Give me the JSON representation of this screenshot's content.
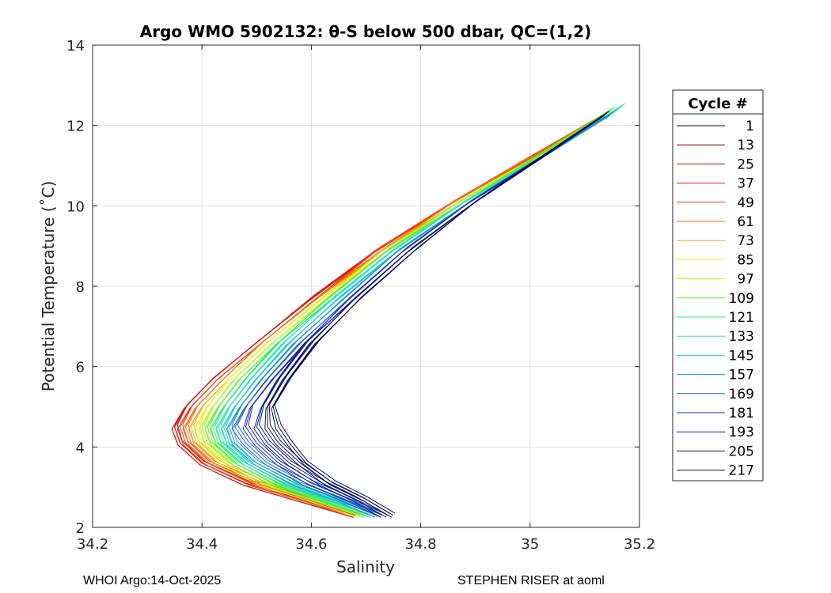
{
  "chart_data": {
    "type": "line",
    "title": "Argo WMO 5902132: θ-S below 500 dbar,  QC=(1,2)",
    "xlabel": "Salinity",
    "ylabel": "Potential Temperature (˚C)",
    "xlim": [
      34.2,
      35.2
    ],
    "ylim": [
      2,
      14
    ],
    "xticks": [
      34.2,
      34.4,
      34.6,
      34.8,
      35,
      35.2
    ],
    "xtick_labels": [
      "34.2",
      "34.4",
      "34.6",
      "34.8",
      "35",
      "35.2"
    ],
    "yticks": [
      2,
      4,
      6,
      8,
      10,
      12,
      14
    ],
    "ytick_labels": [
      "2",
      "4",
      "6",
      "8",
      "10",
      "12",
      "14"
    ],
    "grid": true,
    "legend": {
      "title": "Cycle #",
      "placement": "outside-right",
      "entries": [
        {
          "label": "1",
          "color": "#3a0000"
        },
        {
          "label": "13",
          "color": "#6e0000"
        },
        {
          "label": "25",
          "color": "#a81010"
        },
        {
          "label": "37",
          "color": "#d42020"
        },
        {
          "label": "49",
          "color": "#ee3a10"
        },
        {
          "label": "61",
          "color": "#f46a10"
        },
        {
          "label": "73",
          "color": "#f4a81a"
        },
        {
          "label": "85",
          "color": "#f2f21c"
        },
        {
          "label": "97",
          "color": "#b2f41e"
        },
        {
          "label": "109",
          "color": "#64f02a"
        },
        {
          "label": "121",
          "color": "#2aee66"
        },
        {
          "label": "133",
          "color": "#22e8ac"
        },
        {
          "label": "145",
          "color": "#1ec8d8"
        },
        {
          "label": "157",
          "color": "#1a98c8"
        },
        {
          "label": "169",
          "color": "#1a64c8"
        },
        {
          "label": "181",
          "color": "#1a30b4"
        },
        {
          "label": "193",
          "color": "#101c8c"
        },
        {
          "label": "205",
          "color": "#0c126a"
        },
        {
          "label": "217",
          "color": "#080c50"
        }
      ]
    },
    "series": [
      {
        "name": "1",
        "x": [
          34.68,
          34.58,
          34.48,
          34.4,
          34.36,
          34.35,
          34.37,
          34.42,
          34.5,
          34.6,
          34.72,
          34.86,
          35.0,
          35.14
        ],
        "y": [
          2.3,
          2.7,
          3.1,
          3.6,
          4.1,
          4.5,
          5.0,
          5.7,
          6.6,
          7.7,
          8.9,
          10.1,
          11.2,
          12.3
        ]
      },
      {
        "name": "13",
        "x": [
          34.68,
          34.58,
          34.48,
          34.4,
          34.36,
          34.35,
          34.37,
          34.42,
          34.5,
          34.6,
          34.72,
          34.86,
          35.0,
          35.14
        ],
        "y": [
          2.3,
          2.7,
          3.1,
          3.6,
          4.1,
          4.5,
          5.0,
          5.7,
          6.6,
          7.7,
          8.9,
          10.1,
          11.2,
          12.3
        ]
      },
      {
        "name": "25",
        "x": [
          34.68,
          34.58,
          34.48,
          34.4,
          34.36,
          34.35,
          34.37,
          34.42,
          34.5,
          34.6,
          34.72,
          34.86,
          35.0,
          35.14
        ],
        "y": [
          2.3,
          2.7,
          3.1,
          3.6,
          4.1,
          4.5,
          5.0,
          5.7,
          6.6,
          7.7,
          8.9,
          10.1,
          11.2,
          12.3
        ]
      },
      {
        "name": "37",
        "x": [
          34.68,
          34.58,
          34.48,
          34.4,
          34.36,
          34.35,
          34.37,
          34.42,
          34.5,
          34.6,
          34.72,
          34.86,
          35.0,
          35.14
        ],
        "y": [
          2.3,
          2.7,
          3.1,
          3.6,
          4.1,
          4.5,
          5.0,
          5.7,
          6.6,
          7.7,
          8.9,
          10.1,
          11.2,
          12.3
        ]
      },
      {
        "name": "49",
        "x": [
          34.68,
          34.59,
          34.49,
          34.41,
          34.37,
          34.36,
          34.38,
          34.43,
          34.51,
          34.61,
          34.72,
          34.86,
          35.0,
          35.14
        ],
        "y": [
          2.3,
          2.7,
          3.1,
          3.6,
          4.1,
          4.5,
          5.0,
          5.7,
          6.6,
          7.7,
          8.9,
          10.1,
          11.2,
          12.3
        ]
      },
      {
        "name": "61",
        "x": [
          34.69,
          34.59,
          34.5,
          34.42,
          34.38,
          34.37,
          34.39,
          34.44,
          34.51,
          34.61,
          34.73,
          34.86,
          35.0,
          35.14
        ],
        "y": [
          2.3,
          2.7,
          3.1,
          3.6,
          4.1,
          4.5,
          5.0,
          5.7,
          6.6,
          7.7,
          8.9,
          10.1,
          11.2,
          12.3
        ]
      },
      {
        "name": "73",
        "x": [
          34.69,
          34.6,
          34.51,
          34.43,
          34.39,
          34.38,
          34.4,
          34.45,
          34.52,
          34.62,
          34.73,
          34.87,
          35.01,
          35.14
        ],
        "y": [
          2.3,
          2.7,
          3.1,
          3.6,
          4.1,
          4.5,
          5.0,
          5.7,
          6.6,
          7.7,
          8.9,
          10.1,
          11.2,
          12.3
        ]
      },
      {
        "name": "85",
        "x": [
          34.69,
          34.6,
          34.51,
          34.44,
          34.4,
          34.39,
          34.41,
          34.45,
          34.52,
          34.62,
          34.74,
          34.87,
          35.01,
          35.14
        ],
        "y": [
          2.3,
          2.7,
          3.1,
          3.6,
          4.1,
          4.5,
          5.0,
          5.7,
          6.6,
          7.7,
          8.9,
          10.1,
          11.2,
          12.3
        ]
      },
      {
        "name": "97",
        "x": [
          34.7,
          34.61,
          34.52,
          34.45,
          34.41,
          34.4,
          34.42,
          34.46,
          34.53,
          34.63,
          34.74,
          34.87,
          35.01,
          35.15
        ],
        "y": [
          2.3,
          2.7,
          3.1,
          3.6,
          4.1,
          4.5,
          5.0,
          5.7,
          6.6,
          7.7,
          8.9,
          10.1,
          11.2,
          12.4
        ]
      },
      {
        "name": "109",
        "x": [
          34.7,
          34.61,
          34.53,
          34.46,
          34.42,
          34.41,
          34.43,
          34.47,
          34.54,
          34.63,
          34.74,
          34.88,
          35.01,
          35.15
        ],
        "y": [
          2.3,
          2.7,
          3.1,
          3.6,
          4.1,
          4.5,
          5.0,
          5.7,
          6.6,
          7.7,
          8.9,
          10.1,
          11.2,
          12.4
        ]
      },
      {
        "name": "121",
        "x": [
          34.71,
          34.62,
          34.54,
          34.47,
          34.43,
          34.42,
          34.44,
          34.48,
          34.54,
          34.64,
          34.75,
          34.88,
          35.02,
          35.16
        ],
        "y": [
          2.3,
          2.7,
          3.1,
          3.6,
          4.1,
          4.5,
          5.0,
          5.7,
          6.6,
          7.7,
          8.9,
          10.1,
          11.2,
          12.4
        ]
      },
      {
        "name": "133",
        "x": [
          34.71,
          34.63,
          34.55,
          34.48,
          34.44,
          34.43,
          34.45,
          34.49,
          34.55,
          34.64,
          34.75,
          34.88,
          35.02,
          35.17
        ],
        "y": [
          2.3,
          2.7,
          3.1,
          3.6,
          4.1,
          4.5,
          5.0,
          5.7,
          6.6,
          7.7,
          8.9,
          10.1,
          11.2,
          12.5
        ]
      },
      {
        "name": "145",
        "x": [
          34.72,
          34.64,
          34.56,
          34.49,
          34.45,
          34.44,
          34.46,
          34.5,
          34.56,
          34.65,
          34.76,
          34.89,
          35.02,
          35.15
        ],
        "y": [
          2.3,
          2.7,
          3.1,
          3.6,
          4.1,
          4.5,
          5.0,
          5.7,
          6.6,
          7.7,
          8.9,
          10.1,
          11.2,
          12.3
        ]
      },
      {
        "name": "157",
        "x": [
          34.72,
          34.65,
          34.57,
          34.5,
          34.46,
          34.45,
          34.47,
          34.51,
          34.57,
          34.66,
          34.76,
          34.89,
          35.02,
          35.15
        ],
        "y": [
          2.3,
          2.7,
          3.1,
          3.6,
          4.1,
          4.5,
          5.0,
          5.7,
          6.6,
          7.7,
          8.9,
          10.1,
          11.2,
          12.3
        ]
      },
      {
        "name": "169",
        "x": [
          34.73,
          34.66,
          34.59,
          34.52,
          34.48,
          34.46,
          34.48,
          34.52,
          34.58,
          34.67,
          34.77,
          34.89,
          35.02,
          35.14
        ],
        "y": [
          2.3,
          2.7,
          3.1,
          3.6,
          4.1,
          4.5,
          5.0,
          5.7,
          6.6,
          7.7,
          8.9,
          10.1,
          11.2,
          12.3
        ]
      },
      {
        "name": "181",
        "x": [
          34.73,
          34.67,
          34.6,
          34.54,
          34.5,
          34.48,
          34.49,
          34.53,
          34.59,
          34.67,
          34.77,
          34.89,
          35.02,
          35.14
        ],
        "y": [
          2.3,
          2.7,
          3.1,
          3.6,
          4.1,
          4.5,
          5.0,
          5.7,
          6.6,
          7.7,
          8.9,
          10.1,
          11.2,
          12.3
        ]
      },
      {
        "name": "193",
        "x": [
          34.73,
          34.68,
          34.62,
          34.56,
          34.52,
          34.5,
          34.51,
          34.54,
          34.59,
          34.68,
          34.78,
          34.9,
          35.02,
          35.14
        ],
        "y": [
          2.3,
          2.7,
          3.1,
          3.6,
          4.1,
          4.5,
          5.0,
          5.7,
          6.6,
          7.7,
          8.9,
          10.1,
          11.2,
          12.3
        ]
      },
      {
        "name": "205",
        "x": [
          34.74,
          34.69,
          34.63,
          34.58,
          34.54,
          34.52,
          34.52,
          34.55,
          34.6,
          34.68,
          34.78,
          34.9,
          35.02,
          35.14
        ],
        "y": [
          2.3,
          2.7,
          3.1,
          3.6,
          4.1,
          4.5,
          5.0,
          5.7,
          6.6,
          7.7,
          8.9,
          10.1,
          11.2,
          12.3
        ]
      },
      {
        "name": "217",
        "x": [
          34.75,
          34.7,
          34.64,
          34.59,
          34.56,
          34.54,
          34.53,
          34.56,
          34.61,
          34.69,
          34.79,
          34.9,
          35.02,
          35.14
        ],
        "y": [
          2.3,
          2.7,
          3.1,
          3.6,
          4.1,
          4.5,
          5.0,
          5.7,
          6.6,
          7.7,
          8.9,
          10.1,
          11.2,
          12.3
        ]
      }
    ]
  },
  "footer": {
    "left": "WHOI Argo:14-Oct-2025",
    "right": "STEPHEN RISER at aoml"
  }
}
